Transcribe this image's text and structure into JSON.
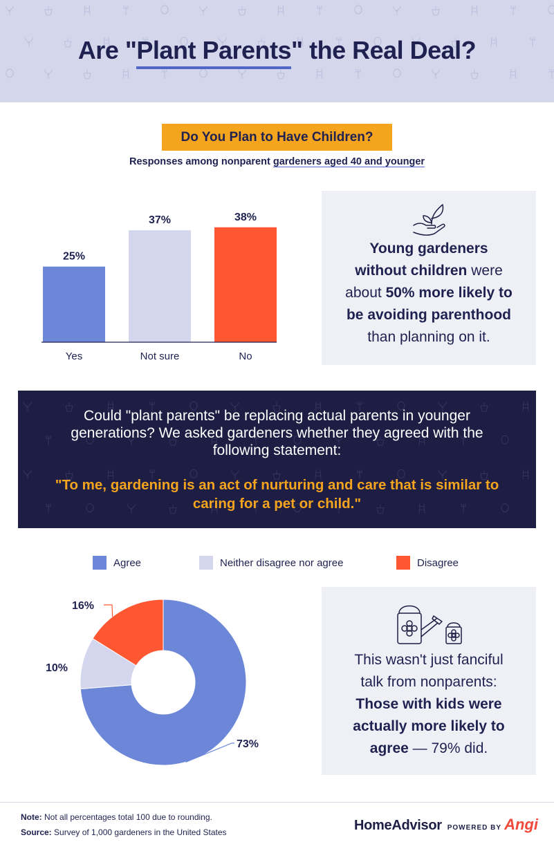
{
  "header": {
    "title_part1": "Are \"",
    "title_underlined": "Plant Parents",
    "title_part2": "\" the Real Deal?"
  },
  "question": {
    "title": "Do You Plan to Have Children?",
    "subtitle_part1": "Responses among nonparent ",
    "subtitle_underlined": "gardeners aged 40 and younger"
  },
  "chart_data": [
    {
      "type": "bar",
      "title": "Do You Plan to Have Children?",
      "subtitle": "Responses among nonparent gardeners aged 40 and younger",
      "categories": [
        "Yes",
        "Not sure",
        "No"
      ],
      "values": [
        25,
        37,
        38
      ],
      "value_labels": [
        "25%",
        "37%",
        "38%"
      ],
      "colors": [
        "#6c87d8",
        "#d3d6ec",
        "#ff5732"
      ],
      "ylim": [
        0,
        40
      ],
      "grid": false,
      "xlabel": "",
      "ylabel": ""
    },
    {
      "type": "pie",
      "donut": true,
      "categories": [
        "Agree",
        "Neither disagree nor agree",
        "Disagree"
      ],
      "values": [
        73,
        10,
        16
      ],
      "value_labels": [
        "73%",
        "10%",
        "16%"
      ],
      "colors": [
        "#6c87d8",
        "#d3d6ec",
        "#ff5732"
      ],
      "legend_position": "top"
    }
  ],
  "insight1": {
    "icon": "hand-with-sprout-icon",
    "line1": "Young gardeners",
    "line2_bold": "without children",
    "line2_rest": " were",
    "line3_pre": "about ",
    "line3_bold": "50% more likely to",
    "line4_bold": "be avoiding parenthood",
    "line5": "than planning on it."
  },
  "statement": {
    "lead": "Could \"plant parents\" be replacing actual parents in younger generations? We asked gardeners whether they agreed with the following statement:",
    "quote": "\"To me, gardening is an act of nurturing and care that is similar to caring for a pet or child.\""
  },
  "insight2": {
    "icon": "watering-can-icon",
    "line1": "This wasn't just fanciful",
    "line2": "talk from nonparents:",
    "line3_bold": "Those with kids were",
    "line4_bold": "actually more likely to",
    "line5_bold": "agree",
    "line5_rest": " — 79% did."
  },
  "footer": {
    "note_label": "Note:",
    "note_text": " Not all percentages total 100 due to rounding.",
    "source_label": "Source:",
    "source_text": " Survey of 1,000 gardeners in the United States",
    "brand_main": "HomeAdvisor",
    "brand_powered": "POWERED BY",
    "brand_partner": "Angi"
  },
  "colors": {
    "accent": "#f5a41e",
    "navy": "#1e1e44",
    "blue": "#6c87d8",
    "lavender": "#d3d6ec",
    "red": "#ff5732"
  }
}
